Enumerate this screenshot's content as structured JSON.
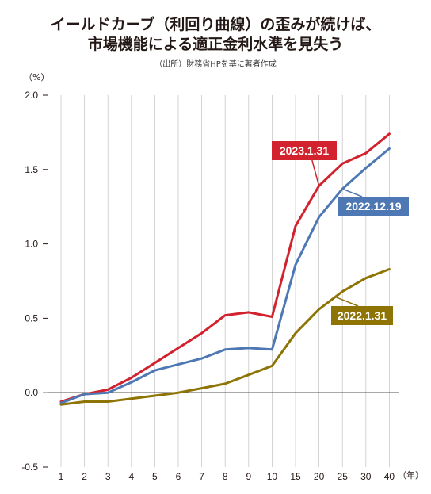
{
  "header": {
    "title_line1": "イールドカーブ（利回り曲線）の歪みが続けば、",
    "title_line2": "市場機能による適正金利水準を見失う",
    "source": "（出所）財務省HPを基に著者作成"
  },
  "chart_data": {
    "type": "line",
    "y_unit": "（%）",
    "x_unit": "（年）",
    "categories": [
      "1",
      "2",
      "3",
      "4",
      "5",
      "6",
      "7",
      "8",
      "9",
      "10",
      "15",
      "20",
      "25",
      "30",
      "40"
    ],
    "ylim": [
      -0.5,
      2.0
    ],
    "y_ticks": [
      {
        "value": 2.0,
        "label": "2.0"
      },
      {
        "value": 1.5,
        "label": "1.5"
      },
      {
        "value": 1.0,
        "label": "1.0"
      },
      {
        "value": 0.5,
        "label": "0.5"
      },
      {
        "value": 0.0,
        "label": "0.0"
      },
      {
        "value": -0.5,
        "label": "-0.5"
      }
    ],
    "grid": "vertical",
    "series": [
      {
        "name": "2023.1.31",
        "color": "#d2222d",
        "values": [
          -0.06,
          -0.01,
          0.02,
          0.1,
          0.2,
          0.3,
          0.4,
          0.52,
          0.54,
          0.51,
          1.12,
          1.39,
          1.54,
          1.61,
          1.74
        ],
        "label_position": "upper"
      },
      {
        "name": "2022.12.19",
        "color": "#4e78b4",
        "values": [
          -0.07,
          -0.01,
          0.0,
          0.07,
          0.15,
          0.19,
          0.23,
          0.29,
          0.3,
          0.29,
          0.86,
          1.18,
          1.37,
          1.51,
          1.64
        ],
        "label_position": "right"
      },
      {
        "name": "2022.1.31",
        "color": "#8d7405",
        "values": [
          -0.08,
          -0.06,
          -0.06,
          -0.04,
          -0.02,
          0.0,
          0.03,
          0.06,
          0.12,
          0.18,
          0.4,
          0.56,
          0.68,
          0.77,
          0.83
        ],
        "label_position": "lower"
      }
    ]
  }
}
